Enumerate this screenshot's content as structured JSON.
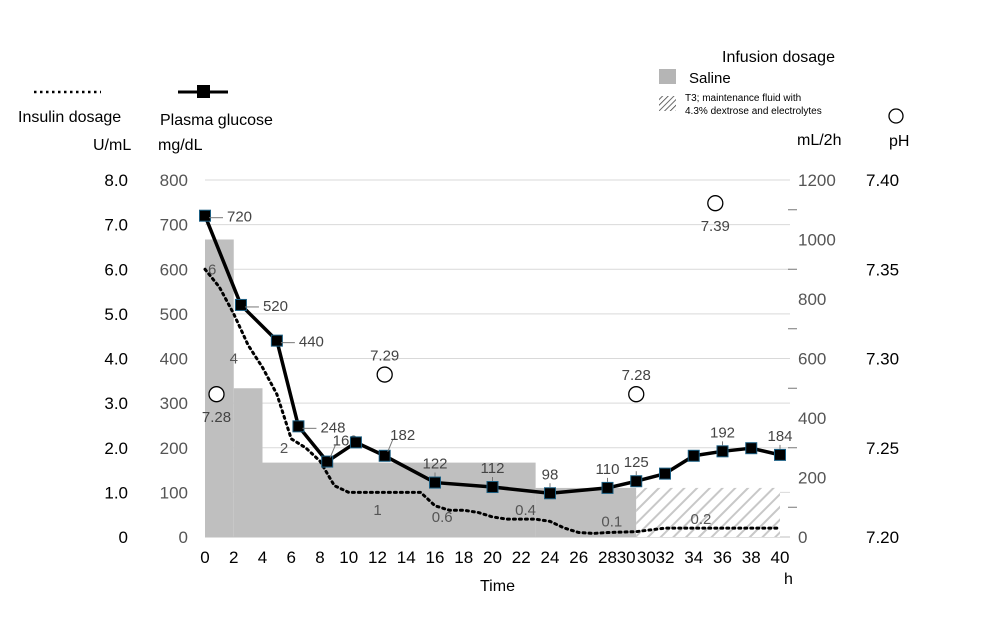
{
  "chart_data": {
    "type": "line",
    "xlabel": "Time",
    "xunit": "h",
    "x_ticks": [
      "0",
      "2",
      "4",
      "6",
      "8",
      "10",
      "12",
      "14",
      "16",
      "18",
      "20",
      "22",
      "24",
      "26",
      "28",
      "30",
      "30",
      "32",
      "34",
      "36",
      "38",
      "40"
    ],
    "axes": {
      "insulin": {
        "title": "Insulin dosage",
        "unit": "U/mL",
        "range": [
          0,
          8
        ],
        "ticks": [
          "0",
          "1.0",
          "2.0",
          "3.0",
          "4.0",
          "5.0",
          "6.0",
          "7.0",
          "8.0"
        ]
      },
      "glucose": {
        "title": "Plasma glucose",
        "unit": "mg/dL",
        "range": [
          0,
          800
        ],
        "ticks": [
          "0",
          "100",
          "200",
          "300",
          "400",
          "500",
          "600",
          "700",
          "800"
        ]
      },
      "infusion": {
        "title": "Infusion dosage",
        "unit": "mL/2h",
        "range": [
          0,
          1200
        ],
        "ticks": [
          "0",
          "200",
          "400",
          "600",
          "800",
          "1000",
          "1200"
        ]
      },
      "ph": {
        "title": "pH",
        "range": [
          7.2,
          7.4
        ],
        "ticks": [
          "7.20",
          "7.25",
          "7.30",
          "7.35",
          "7.40"
        ]
      }
    },
    "legend": {
      "insulin": "Insulin dosage",
      "glucose": "Plasma glucose",
      "saline": "Saline",
      "t3": "T3; maintenance fluid with 4.3% dextrose and electrolytes"
    },
    "glucose_series": {
      "x": [
        0,
        2.5,
        5,
        6.5,
        8.5,
        10.5,
        12.5,
        16,
        20,
        24,
        28,
        30,
        32,
        34,
        36,
        38,
        40
      ],
      "y": [
        720,
        520,
        440,
        248,
        169,
        212,
        182,
        122,
        112,
        98,
        110,
        125,
        142,
        182,
        192,
        199,
        184
      ],
      "labels": [
        "720",
        "520",
        "440",
        "248",
        "169",
        "",
        "182",
        "122",
        "112",
        "98",
        "110",
        "125",
        "",
        "",
        "192",
        "",
        "184"
      ]
    },
    "insulin_series": {
      "x": [
        0,
        1,
        2,
        3,
        4,
        5,
        6,
        7,
        8,
        9,
        10,
        11,
        12,
        13,
        14,
        15,
        16,
        17,
        18,
        19,
        20,
        21,
        22,
        23,
        24,
        25,
        26,
        27,
        28,
        30,
        32,
        34,
        36,
        38,
        40
      ],
      "y": [
        6,
        5.6,
        5,
        4.3,
        3.8,
        3.2,
        2.2,
        2,
        1.7,
        1.15,
        1,
        1,
        1,
        1,
        1,
        1,
        0.7,
        0.6,
        0.6,
        0.55,
        0.45,
        0.4,
        0.4,
        0.4,
        0.35,
        0.2,
        0.1,
        0.08,
        0.1,
        0.12,
        0.2,
        0.2,
        0.2,
        0.2,
        0.2
      ],
      "labels": [
        {
          "x": 0.5,
          "y": 6,
          "text": "6"
        },
        {
          "x": 2,
          "y": 4,
          "text": "4"
        },
        {
          "x": 5.5,
          "y": 2,
          "text": "2"
        },
        {
          "x": 12,
          "y": 0.6,
          "text": "1"
        },
        {
          "x": 16.5,
          "y": 0.45,
          "text": "0.6"
        },
        {
          "x": 22.3,
          "y": 0.6,
          "text": "0.4"
        },
        {
          "x": 28.3,
          "y": 0.35,
          "text": "0.1"
        },
        {
          "x": 34.5,
          "y": 0.4,
          "text": "0.2"
        }
      ]
    },
    "saline_steps": [
      {
        "x0": 0,
        "x1": 2,
        "y": 1000
      },
      {
        "x0": 2,
        "x1": 4,
        "y": 500
      },
      {
        "x0": 4,
        "x1": 23,
        "y": 250
      },
      {
        "x0": 23,
        "x1": 30,
        "y": 165
      }
    ],
    "t3_steps": [
      {
        "x0": 30,
        "x1": 40,
        "y": 165
      }
    ],
    "ph_points": [
      {
        "x": 0.8,
        "y": 7.28,
        "text": "7.28"
      },
      {
        "x": 12.5,
        "y": 7.291,
        "text": "7.29"
      },
      {
        "x": 30,
        "y": 7.28,
        "text": "7.28"
      },
      {
        "x": 35.5,
        "y": 7.387,
        "text": "7.39"
      }
    ]
  }
}
